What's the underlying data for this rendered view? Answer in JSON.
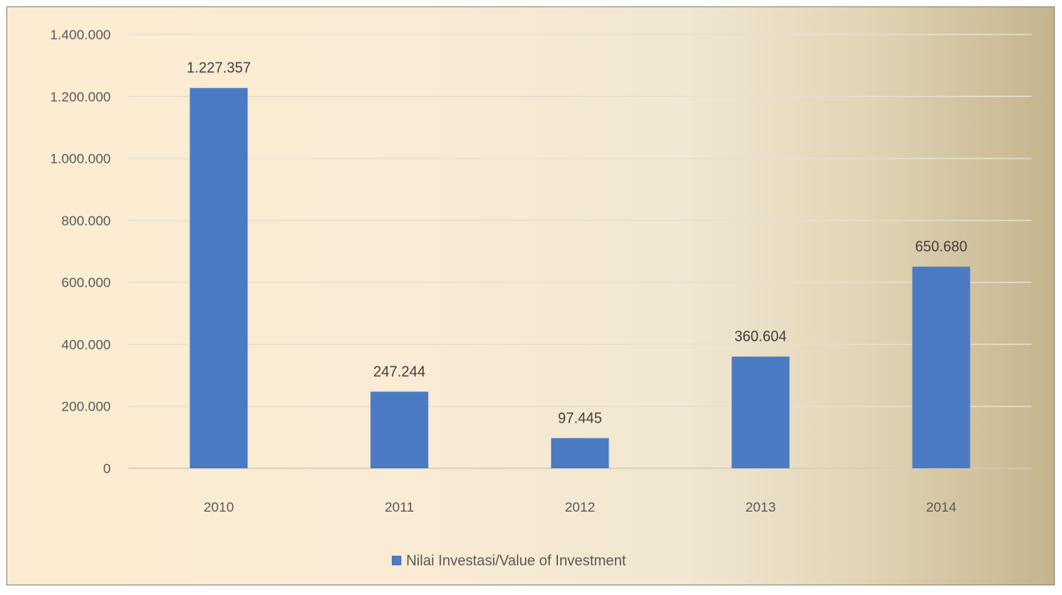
{
  "chart_data": {
    "type": "bar",
    "categories": [
      "2010",
      "2011",
      "2012",
      "2013",
      "2014"
    ],
    "series": [
      {
        "name": "Nilai Investasi/Value of Investment",
        "values": [
          1227357,
          247244,
          97445,
          360604,
          650680
        ],
        "labels": [
          "1.227.357",
          "247.244",
          "97.445",
          "360.604",
          "650.680"
        ],
        "color": "#4a7ac2"
      }
    ],
    "y_ticks": [
      "0",
      "200.000",
      "400.000",
      "600.000",
      "800.000",
      "1.000.000",
      "1.200.000",
      "1.400.000"
    ],
    "ylim": [
      0,
      1400000
    ],
    "grid": true,
    "legend_position": "bottom",
    "title": "",
    "xlabel": "",
    "ylabel": ""
  }
}
